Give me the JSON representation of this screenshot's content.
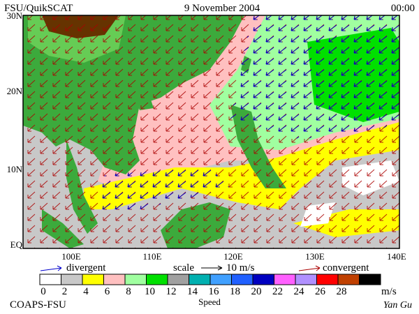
{
  "header": {
    "source": "FSU/QuikSCAT",
    "date": "9 November 2004",
    "time": "00:00"
  },
  "axes": {
    "lat_labels": [
      "30N",
      "20N",
      "10N",
      "EQ"
    ],
    "lon_labels": [
      "100E",
      "110E",
      "120E",
      "130E",
      "140E"
    ]
  },
  "legend": {
    "divergent": "divergent",
    "scale": "scale",
    "scale_value": "10 m/s",
    "convergent": "convergent",
    "divergent_color": "#0000cc",
    "convergent_color": "#aa0000"
  },
  "colorbar": {
    "labels": [
      "0",
      "2",
      "4",
      "6",
      "8",
      "10",
      "12",
      "14",
      "16",
      "18",
      "20",
      "22",
      "24",
      "26",
      "28"
    ],
    "unit": "m/s",
    "title": "Speed",
    "colors": [
      "#ffffff",
      "#c8c8c8",
      "#ffff00",
      "#ffc0c0",
      "#a0ffa0",
      "#00e000",
      "#a0a0a0",
      "#00b0b0",
      "#40a0ff",
      "#2060ff",
      "#0000c0",
      "#ff60ff",
      "#b090ff",
      "#ff0000",
      "#c04000",
      "#000000"
    ]
  },
  "footer": {
    "institution": "COAPS-FSU",
    "author": "Yan Gu"
  }
}
